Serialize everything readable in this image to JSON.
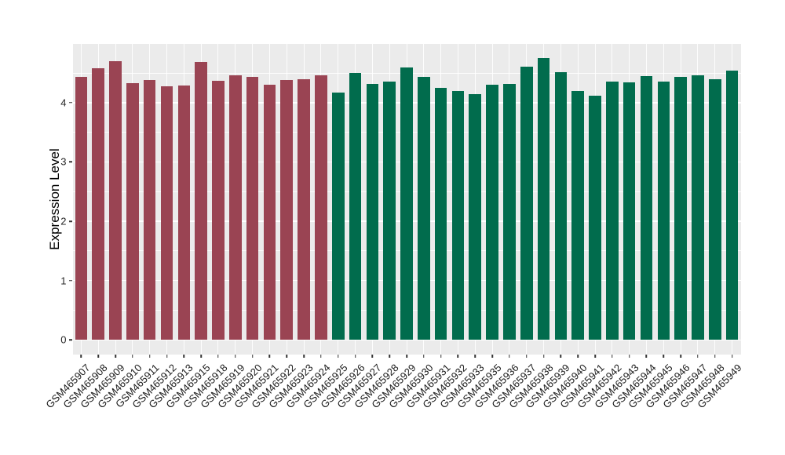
{
  "chart_data": {
    "type": "bar",
    "title": "",
    "xlabel": "",
    "ylabel": "Expression Level",
    "ytick_labels": [
      "0",
      "1",
      "2",
      "3",
      "4"
    ],
    "yticks": [
      0,
      1,
      2,
      3,
      4
    ],
    "yticks_minor": [
      0.5,
      1.5,
      2.5,
      3.5,
      4.5
    ],
    "ylim": [
      -0.24,
      4.99
    ],
    "legend": "none",
    "grid": "horizontal major+minor and vertical per-category, white on gray panel",
    "panel_background": "#EBEBEB",
    "gridline_color": "#FFFFFF",
    "tick_color": "#333333",
    "axis_text_color": "#1A1A1A",
    "groups": [
      {
        "name": "group-maroon",
        "color": "#9A4453",
        "start_index": 0,
        "count": 15
      },
      {
        "name": "group-green",
        "color": "#016C4D",
        "start_index": 15,
        "count": 24
      }
    ],
    "categories": [
      "GSM465907",
      "GSM465908",
      "GSM465909",
      "GSM465910",
      "GSM465911",
      "GSM465912",
      "GSM465913",
      "GSM465915",
      "GSM465918",
      "GSM465919",
      "GSM465920",
      "GSM465921",
      "GSM465922",
      "GSM465923",
      "GSM465924",
      "GSM465925",
      "GSM465926",
      "GSM465927",
      "GSM465928",
      "GSM465929",
      "GSM465930",
      "GSM465931",
      "GSM465932",
      "GSM465933",
      "GSM465935",
      "GSM465936",
      "GSM465937",
      "GSM465938",
      "GSM465939",
      "GSM465940",
      "GSM465941",
      "GSM465942",
      "GSM465943",
      "GSM465944",
      "GSM465945",
      "GSM465946",
      "GSM465947",
      "GSM465948",
      "GSM465949"
    ],
    "values": [
      4.44,
      4.58,
      4.7,
      4.33,
      4.38,
      4.27,
      4.29,
      4.69,
      4.37,
      4.46,
      4.44,
      4.3,
      4.38,
      4.39,
      4.46,
      4.17,
      4.5,
      4.31,
      4.35,
      4.59,
      4.44,
      4.25,
      4.2,
      4.14,
      4.3,
      4.32,
      4.61,
      4.75,
      4.52,
      4.2,
      4.12,
      4.36,
      4.34,
      4.45,
      4.36,
      4.44,
      4.46,
      4.4,
      4.54
    ]
  }
}
